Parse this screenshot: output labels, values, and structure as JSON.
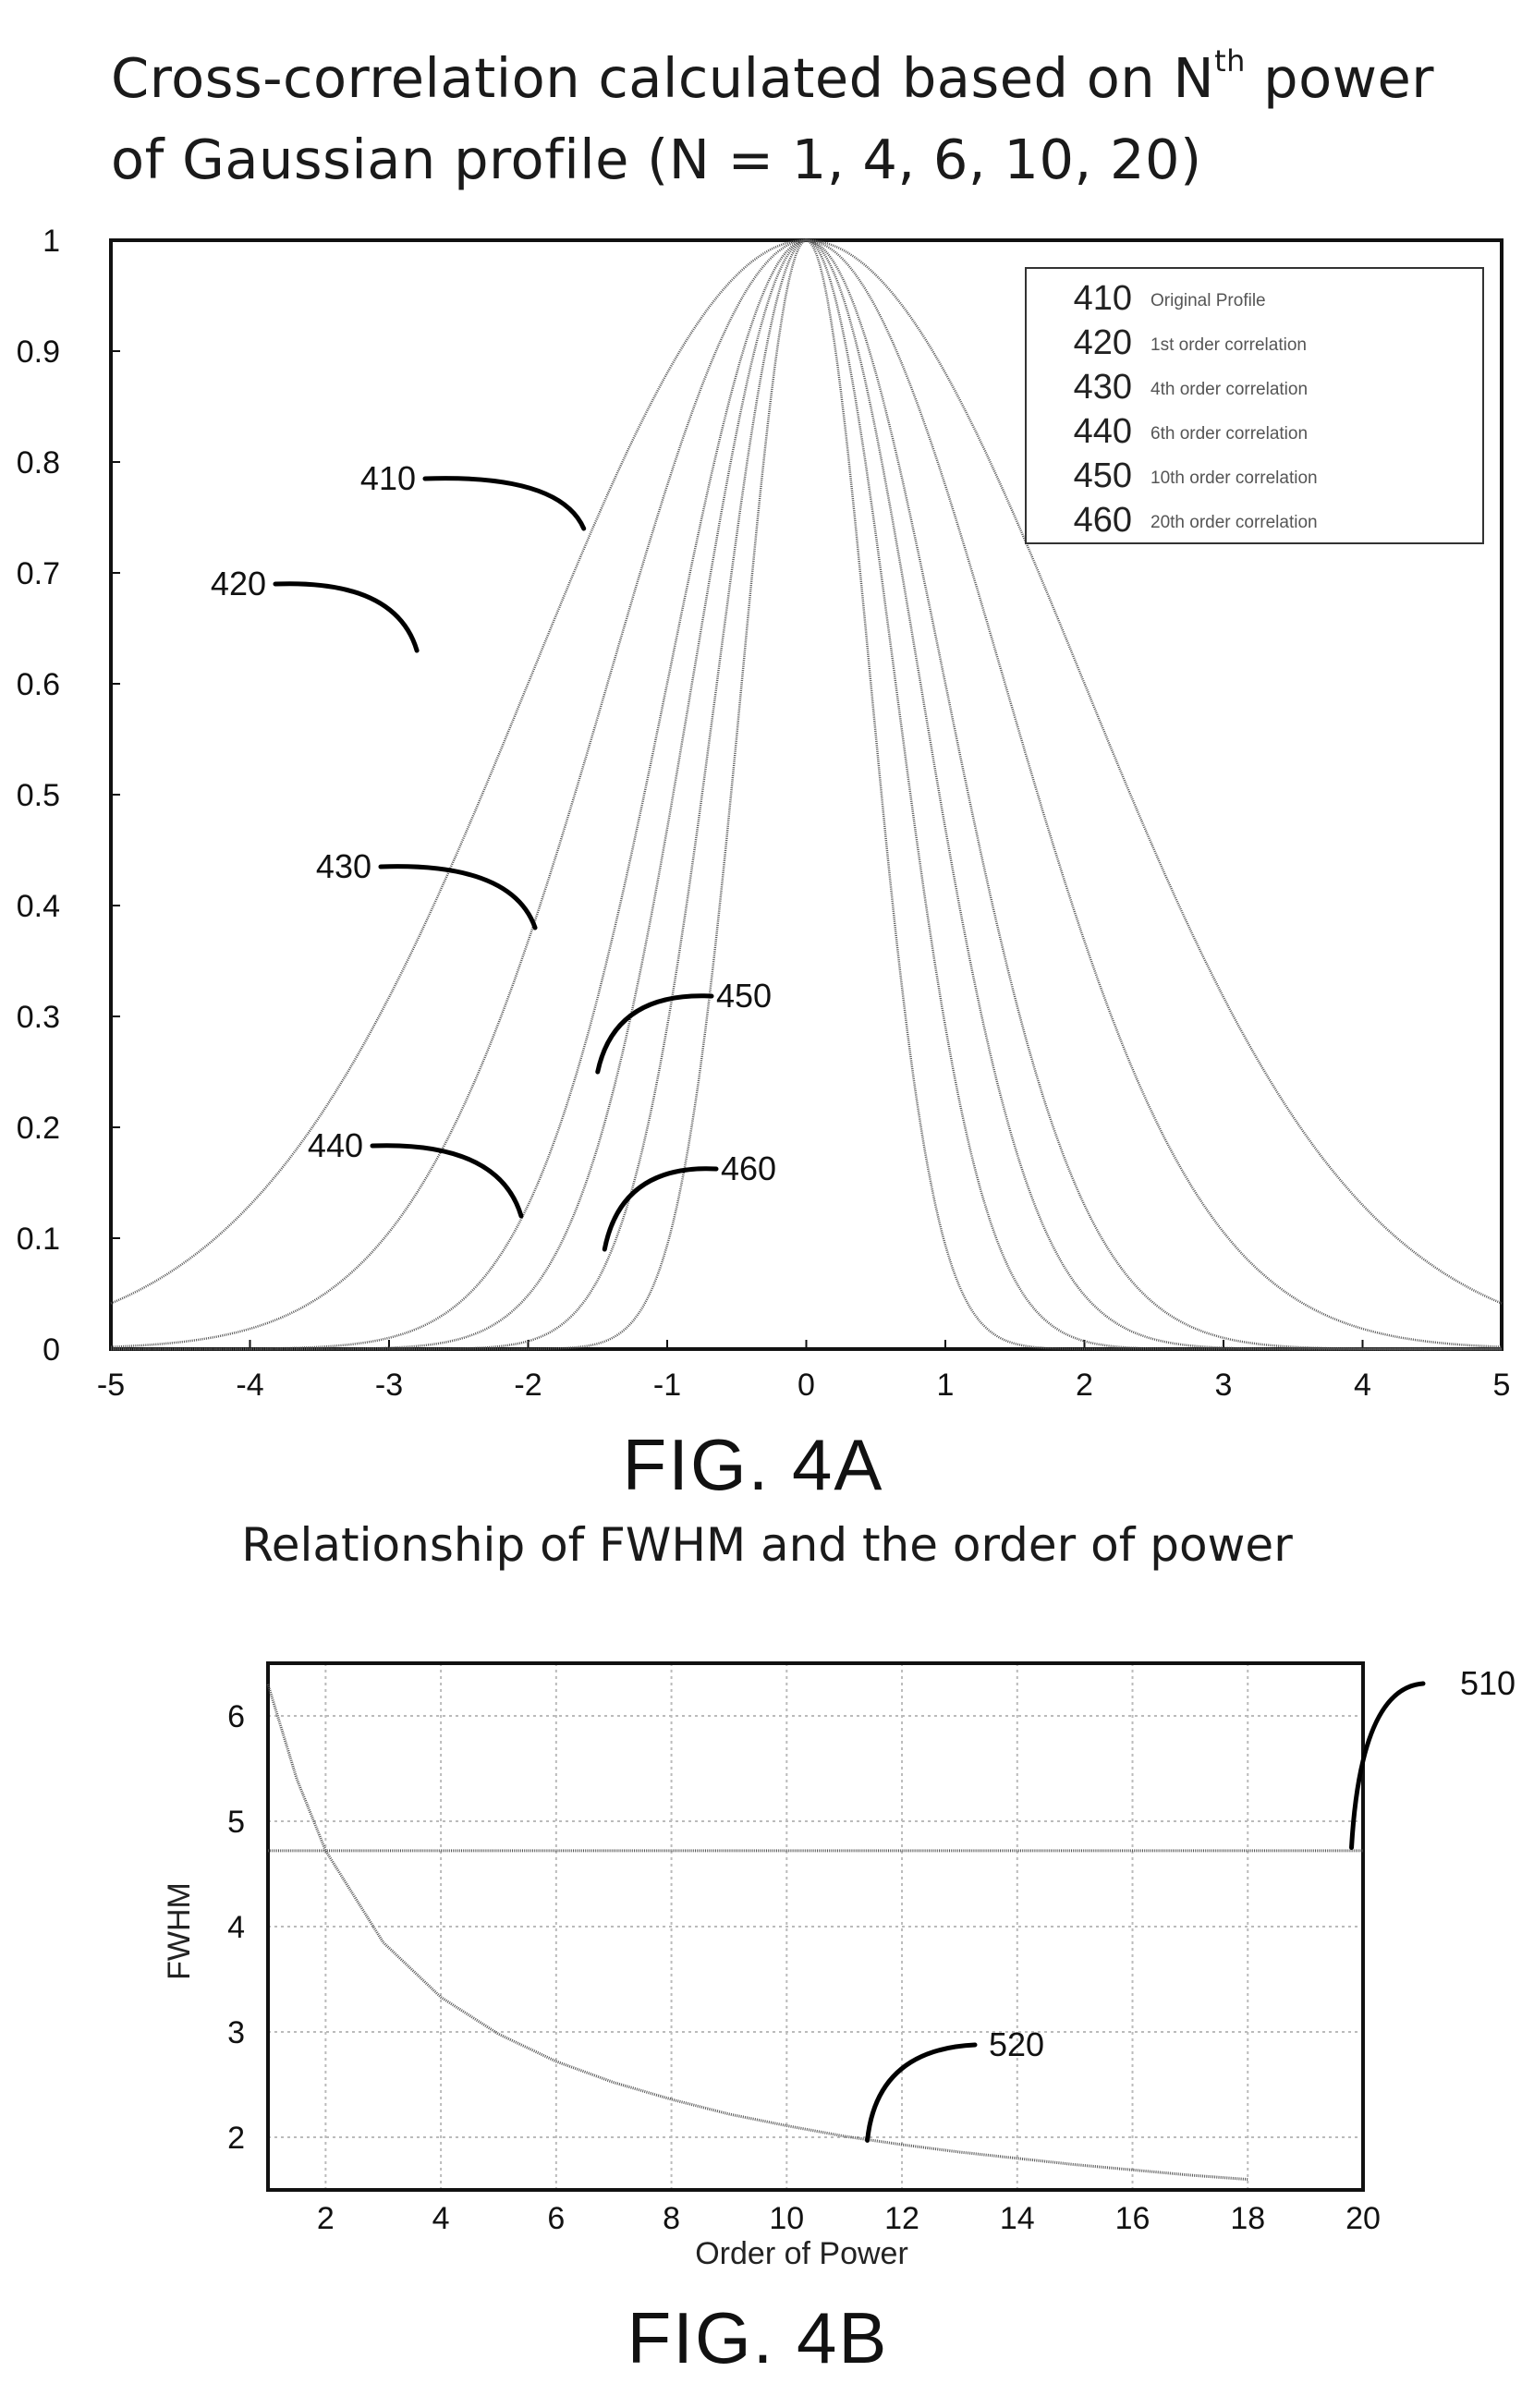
{
  "chart_data": [
    {
      "type": "line",
      "title_main": "Cross-correlation calculated based on N",
      "title_sup": "th",
      "title_rest": " power",
      "title_line2": "of Gaussian profile  (N = 1, 4, 6, 10, 20)",
      "figure_label": "FIG. 4A",
      "xlim": [
        -5,
        5
      ],
      "ylim": [
        0,
        1
      ],
      "x_ticks": [
        "-5",
        "-4",
        "-3",
        "-2",
        "-1",
        "0",
        "1",
        "2",
        "3",
        "4",
        "5"
      ],
      "y_ticks": [
        "0",
        "0.1",
        "0.2",
        "0.3",
        "0.4",
        "0.5",
        "0.6",
        "0.7",
        "0.8",
        "0.9",
        "1"
      ],
      "grid": false,
      "legend_position": "top-right",
      "legend": [
        {
          "ref": "410",
          "label": "Original Profile"
        },
        {
          "ref": "420",
          "label": "1st order correlation"
        },
        {
          "ref": "430",
          "label": "4th order correlation"
        },
        {
          "ref": "440",
          "label": "6th order correlation"
        },
        {
          "ref": "450",
          "label": "10th order correlation"
        },
        {
          "ref": "460",
          "label": "20th order correlation"
        }
      ],
      "series": [
        {
          "ref": "410",
          "sigma": 2.8
        },
        {
          "ref": "420",
          "sigma": 2.0
        },
        {
          "ref": "430",
          "sigma": 1.4
        },
        {
          "ref": "440",
          "sigma": 1.15
        },
        {
          "ref": "450",
          "sigma": 0.9
        },
        {
          "ref": "460",
          "sigma": 0.65
        }
      ],
      "callouts": [
        {
          "ref": "410",
          "target": [
            -1.6,
            0.74
          ]
        },
        {
          "ref": "420",
          "target": [
            -2.8,
            0.63
          ]
        },
        {
          "ref": "430",
          "target": [
            -1.95,
            0.38
          ]
        },
        {
          "ref": "440",
          "target": [
            -2.05,
            0.12
          ]
        },
        {
          "ref": "450",
          "target": [
            -1.5,
            0.25
          ]
        },
        {
          "ref": "460",
          "target": [
            -1.45,
            0.09
          ]
        }
      ],
      "colors": {
        "line": "#555555",
        "axis": "#111111"
      }
    },
    {
      "type": "line",
      "title": "Relationship of FWHM and the order of power",
      "figure_label": "FIG. 4B",
      "xlabel": "Order of Power",
      "ylabel": "FWHM",
      "xlim": [
        1,
        20
      ],
      "ylim": [
        1.5,
        6.5
      ],
      "x_ticks": [
        "2",
        "4",
        "6",
        "8",
        "10",
        "12",
        "14",
        "16",
        "18",
        "20"
      ],
      "y_ticks": [
        "2",
        "3",
        "4",
        "5",
        "6"
      ],
      "grid": true,
      "series": [
        {
          "ref": "510",
          "x": [
            1,
            20
          ],
          "y": [
            4.72,
            4.72
          ]
        },
        {
          "ref": "520",
          "x": [
            1,
            1.5,
            2,
            3,
            4,
            5,
            6,
            7,
            8,
            9,
            10,
            11,
            12,
            13,
            14,
            15,
            16,
            17,
            18
          ],
          "y": [
            6.3,
            5.4,
            4.72,
            3.85,
            3.33,
            2.98,
            2.72,
            2.52,
            2.36,
            2.22,
            2.11,
            2.01,
            1.93,
            1.86,
            1.8,
            1.74,
            1.69,
            1.64,
            1.6
          ]
        }
      ],
      "callouts": [
        {
          "ref": "510",
          "target": [
            19.8,
            4.75
          ]
        },
        {
          "ref": "520",
          "target": [
            11.4,
            1.97
          ]
        }
      ],
      "colors": {
        "line": "#555555",
        "axis": "#111111",
        "grid": "#bbbbbb"
      }
    }
  ]
}
